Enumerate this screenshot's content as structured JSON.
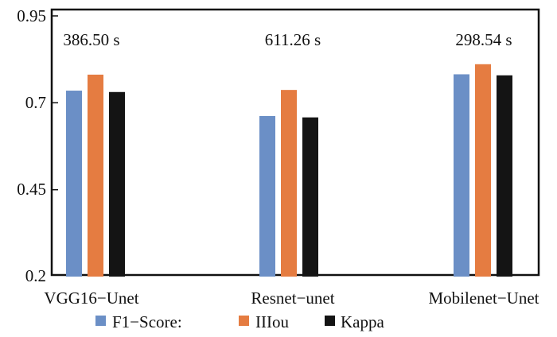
{
  "chart_data": {
    "type": "bar",
    "categories": [
      "VGG16−Unet",
      "Resnet−unet",
      "Mobilenet−Unet"
    ],
    "series": [
      {
        "name": "F1−Score:",
        "color": "#6b8fc6",
        "values": [
          0.735,
          0.662,
          0.782
        ]
      },
      {
        "name": "IIIou",
        "color": "#e57c41",
        "values": [
          0.781,
          0.737,
          0.811
        ]
      },
      {
        "name": "Kappa",
        "color": "#141414",
        "values": [
          0.731,
          0.658,
          0.779
        ]
      }
    ],
    "annotations": [
      "386.50 s",
      "611.26 s",
      "298.54 s"
    ],
    "yticks": [
      "0.95",
      "0.7",
      "0.45",
      "0.2"
    ],
    "ylim": [
      0.2,
      0.95
    ],
    "legend_position": "bottom"
  }
}
